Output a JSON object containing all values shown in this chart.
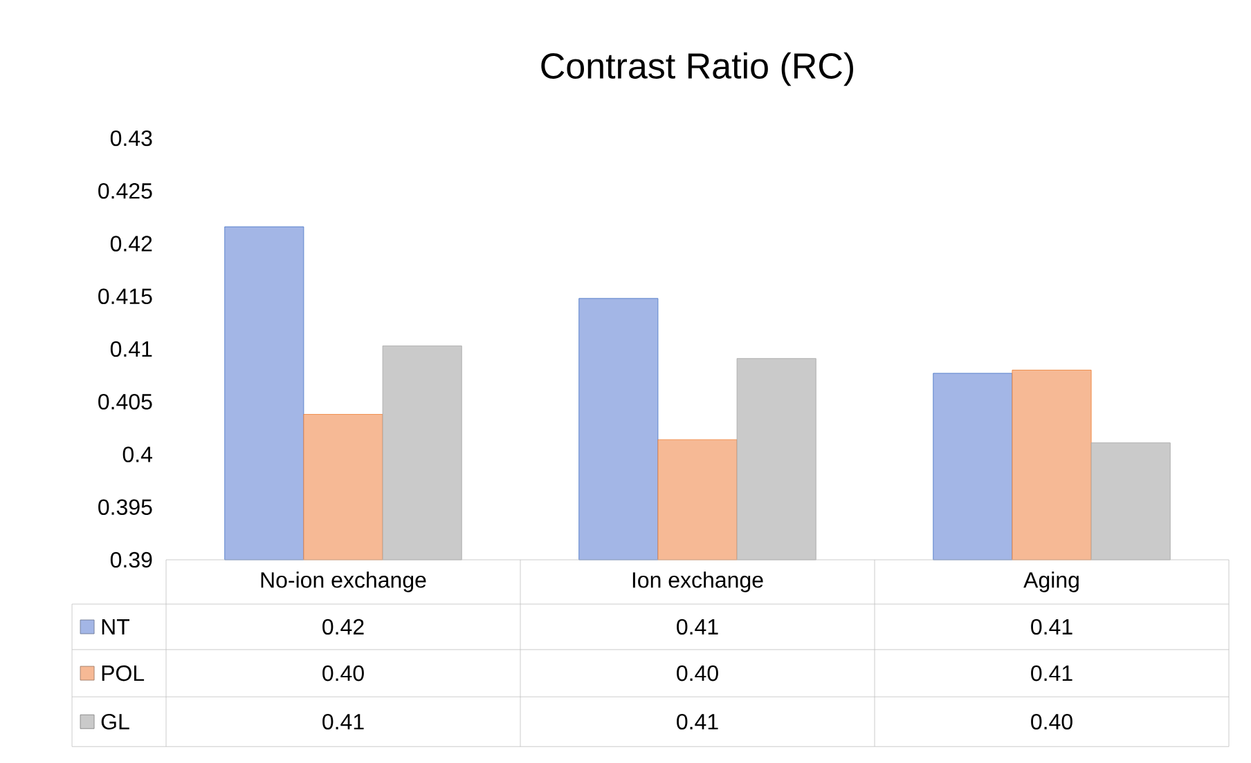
{
  "chart_data": {
    "type": "bar",
    "title": "Contrast Ratio (RC)",
    "categories": [
      "No-ion exchange",
      "Ion exchange",
      "Aging"
    ],
    "series": [
      {
        "name": "NT",
        "color": "#a3b6e6",
        "values": [
          0.4216,
          0.4148,
          0.4077
        ],
        "value_labels": [
          "0.42",
          "0.41",
          "0.41"
        ]
      },
      {
        "name": "POL",
        "color": "#f6b995",
        "values": [
          0.4038,
          0.4014,
          0.408
        ],
        "value_labels": [
          "0.40",
          "0.40",
          "0.41"
        ]
      },
      {
        "name": "GL",
        "color": "#cacaca",
        "values": [
          0.4103,
          0.4091,
          0.4011
        ],
        "value_labels": [
          "0.41",
          "0.41",
          "0.40"
        ]
      }
    ],
    "ylim": [
      0.39,
      0.43
    ],
    "yticks": [
      0.39,
      0.395,
      0.4,
      0.405,
      0.41,
      0.415,
      0.42,
      0.425,
      0.43
    ],
    "legend": "bottom"
  }
}
